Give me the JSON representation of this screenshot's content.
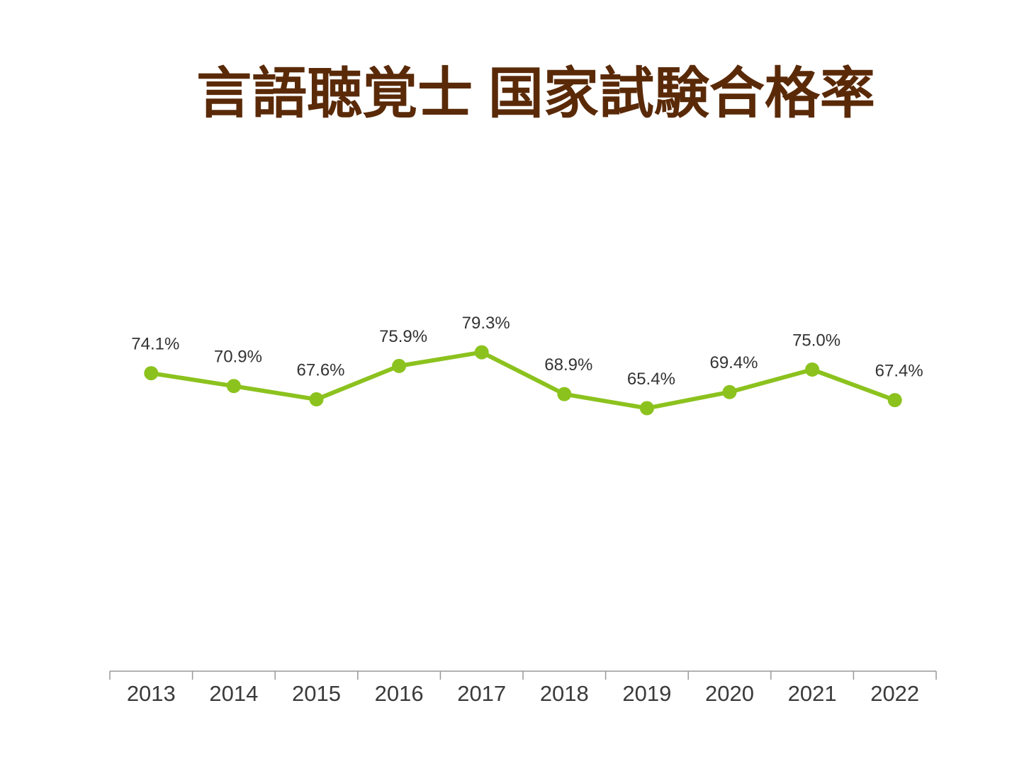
{
  "chart_data": {
    "type": "line",
    "title": "言語聴覚士 国家試験合格率",
    "categories": [
      "2013",
      "2014",
      "2015",
      "2016",
      "2017",
      "2018",
      "2019",
      "2020",
      "2021",
      "2022"
    ],
    "values": [
      74.1,
      70.9,
      67.6,
      75.9,
      79.3,
      68.9,
      65.4,
      69.4,
      75.0,
      67.4
    ],
    "value_labels": [
      "74.1%",
      "70.9%",
      "67.6%",
      "75.9%",
      "79.3%",
      "68.9%",
      "65.4%",
      "69.4%",
      "75.0%",
      "67.4%"
    ],
    "color": "#8cc21e",
    "ylim": [
      0,
      100
    ]
  }
}
